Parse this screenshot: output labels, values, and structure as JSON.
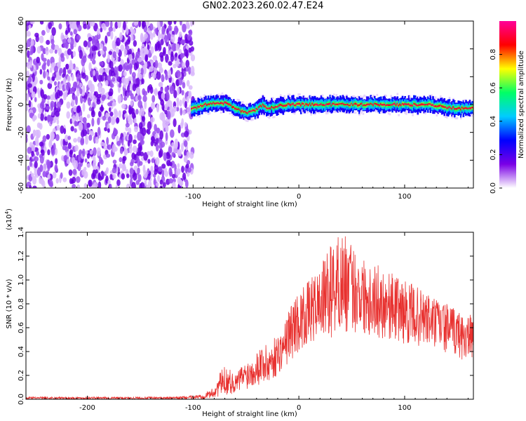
{
  "title": "GN02.2023.260.02.47.E24",
  "chart_data": [
    {
      "type": "heatmap",
      "xlabel": "Height of straight line (km)",
      "ylabel": "Frequency (Hz)",
      "xlim": [
        -258,
        165
      ],
      "ylim": [
        -60,
        60
      ],
      "xticks": [
        -200,
        -100,
        0,
        100
      ],
      "xtick_labels": [
        "-200",
        "-100",
        "0",
        "100"
      ],
      "yticks": [
        -60,
        -40,
        -20,
        0,
        20,
        40,
        60
      ],
      "ytick_labels": [
        "-60",
        "-40",
        "-20",
        "0",
        "20",
        "40",
        "60"
      ],
      "colorbar": {
        "label": "Normalized spectral amplitude",
        "range": [
          0,
          1
        ],
        "ticks": [
          0.0,
          0.2,
          0.4,
          0.6,
          0.8
        ],
        "tick_labels": [
          "0.0",
          "0.2",
          "0.4",
          "0.6",
          "0.8"
        ],
        "colors": [
          "#ffffff",
          "#7a00e6",
          "#0000ff",
          "#00ccff",
          "#00ff66",
          "#ffff00",
          "#ff0000",
          "#ff0099"
        ]
      },
      "noise_region": {
        "x_range": [
          -258,
          -100
        ],
        "y_range": [
          -60,
          60
        ],
        "mean_amplitude": 0.25
      },
      "ridge": {
        "x": [
          -100,
          -90,
          -80,
          -70,
          -60,
          -50,
          -45,
          -40,
          -35,
          -30,
          -20,
          -10,
          0,
          20,
          40,
          60,
          80,
          100,
          120,
          140,
          150,
          165
        ],
        "y": [
          -3,
          0,
          1,
          1,
          -3,
          -6,
          -5,
          -3,
          0,
          -3,
          -1,
          0,
          0,
          0,
          0,
          0,
          0,
          0,
          0,
          -2,
          -3,
          -2
        ]
      }
    },
    {
      "type": "line",
      "xlabel": "Height of straight line (km)",
      "ylabel": "SNR (10 * v/v)",
      "y_scale_label_base": "(x10",
      "y_scale_label_exp": "4",
      "y_scale_label_close": ")",
      "xlim": [
        -258,
        165
      ],
      "ylim": [
        0,
        1.4
      ],
      "xticks": [
        -200,
        -100,
        0,
        100
      ],
      "xtick_labels": [
        "-200",
        "-100",
        "0",
        "100"
      ],
      "yticks": [
        0.0,
        0.2,
        0.4,
        0.6,
        0.8,
        1.0,
        1.2,
        1.4
      ],
      "ytick_labels": [
        "0.0",
        "0.2",
        "0.4",
        "0.6",
        "0.8",
        "1.0",
        "1.2",
        "1.4"
      ],
      "color": "#e8312f",
      "series": [
        {
          "x": [
            -258,
            -240,
            -220,
            -200,
            -180,
            -160,
            -140,
            -120,
            -100,
            -90,
            -80,
            -75,
            -70,
            -65,
            -60,
            -55,
            -50,
            -45,
            -40,
            -35,
            -30,
            -25,
            -20,
            -15,
            -10,
            -5,
            0,
            10,
            20,
            30,
            40,
            50,
            60,
            70,
            80,
            90,
            100,
            110,
            120,
            130,
            140,
            150,
            160,
            165
          ],
          "envelope_low": [
            0.0,
            0.0,
            0.0,
            0.0,
            0.0,
            0.0,
            0.0,
            0.0,
            0.0,
            0.0,
            0.01,
            0.02,
            0.03,
            0.04,
            0.05,
            0.06,
            0.08,
            0.1,
            0.12,
            0.12,
            0.1,
            0.15,
            0.2,
            0.25,
            0.3,
            0.35,
            0.4,
            0.45,
            0.5,
            0.5,
            0.55,
            0.55,
            0.55,
            0.5,
            0.5,
            0.5,
            0.45,
            0.45,
            0.42,
            0.4,
            0.38,
            0.35,
            0.3,
            0.3
          ],
          "envelope_high": [
            0.02,
            0.02,
            0.02,
            0.02,
            0.02,
            0.02,
            0.02,
            0.02,
            0.03,
            0.05,
            0.1,
            0.22,
            0.28,
            0.25,
            0.2,
            0.28,
            0.32,
            0.35,
            0.4,
            0.48,
            0.45,
            0.5,
            0.55,
            0.58,
            0.75,
            0.85,
            0.9,
            1.0,
            1.1,
            1.3,
            1.42,
            1.3,
            1.2,
            1.15,
            1.1,
            1.05,
            1.0,
            0.95,
            0.9,
            0.85,
            0.8,
            0.75,
            0.7,
            0.72
          ]
        }
      ]
    }
  ]
}
